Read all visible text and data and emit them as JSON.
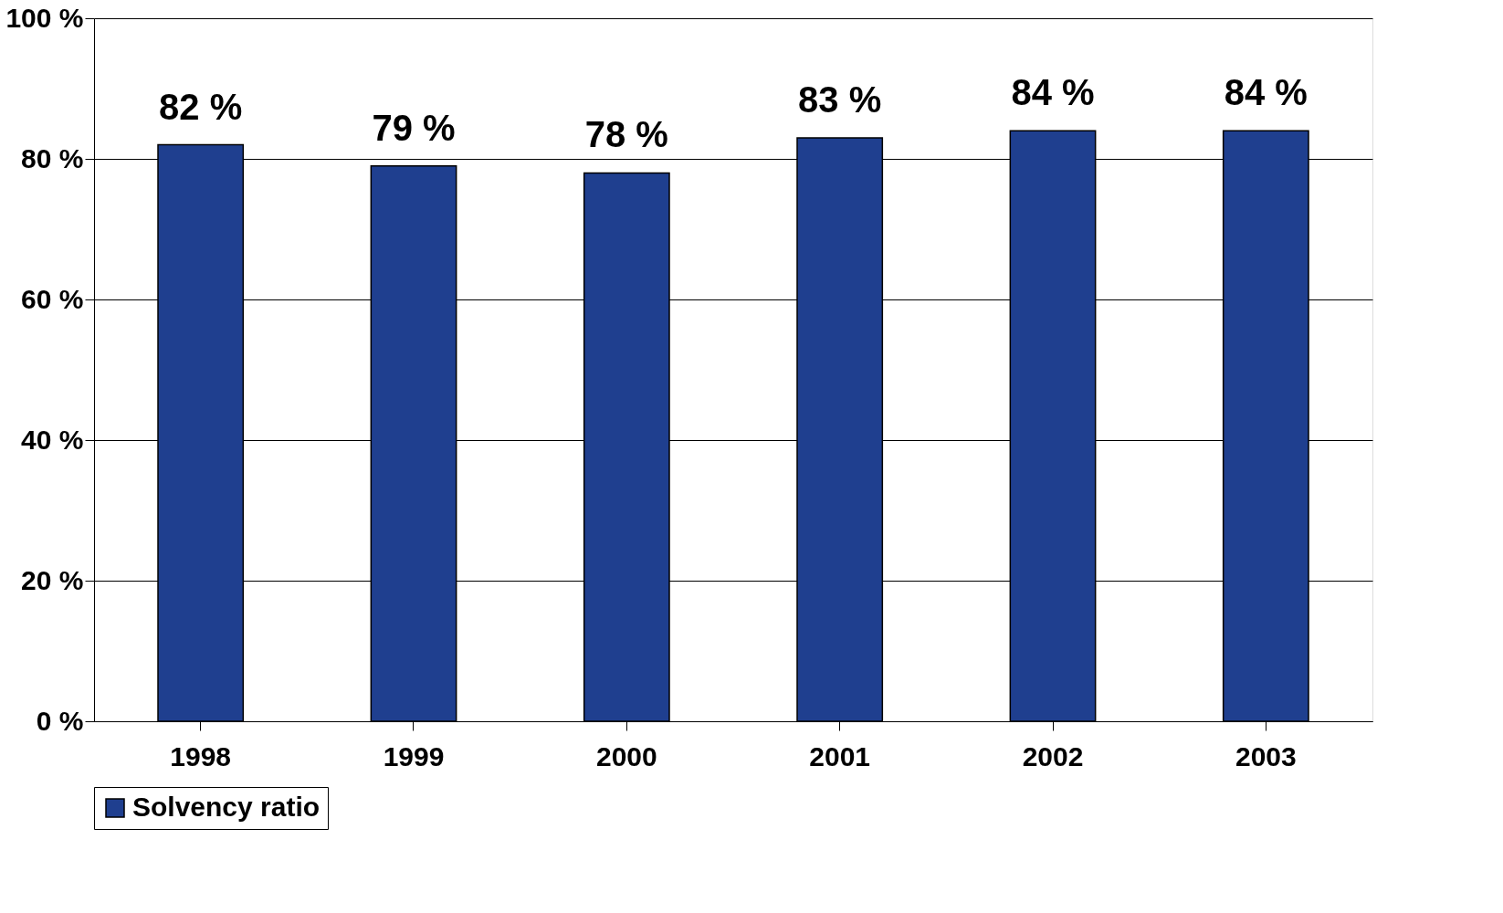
{
  "chart_data": {
    "type": "bar",
    "categories": [
      "1998",
      "1999",
      "2000",
      "2001",
      "2002",
      "2003"
    ],
    "series": [
      {
        "name": "Solvency ratio",
        "color": "#1f3f8f",
        "values": [
          82,
          79,
          78,
          83,
          84,
          84
        ],
        "value_labels": [
          "82 %",
          "79 %",
          "78 %",
          "83 %",
          "84 %",
          "84 %"
        ]
      }
    ],
    "ylim": [
      0,
      100
    ],
    "yticks": [
      {
        "value": 0,
        "label": "0 %"
      },
      {
        "value": 20,
        "label": "20 %"
      },
      {
        "value": 40,
        "label": "40 %"
      },
      {
        "value": 60,
        "label": "60 %"
      },
      {
        "value": 80,
        "label": "80 %"
      },
      {
        "value": 100,
        "label": "100 %"
      }
    ],
    "grid": "y",
    "legend": "bottom"
  }
}
